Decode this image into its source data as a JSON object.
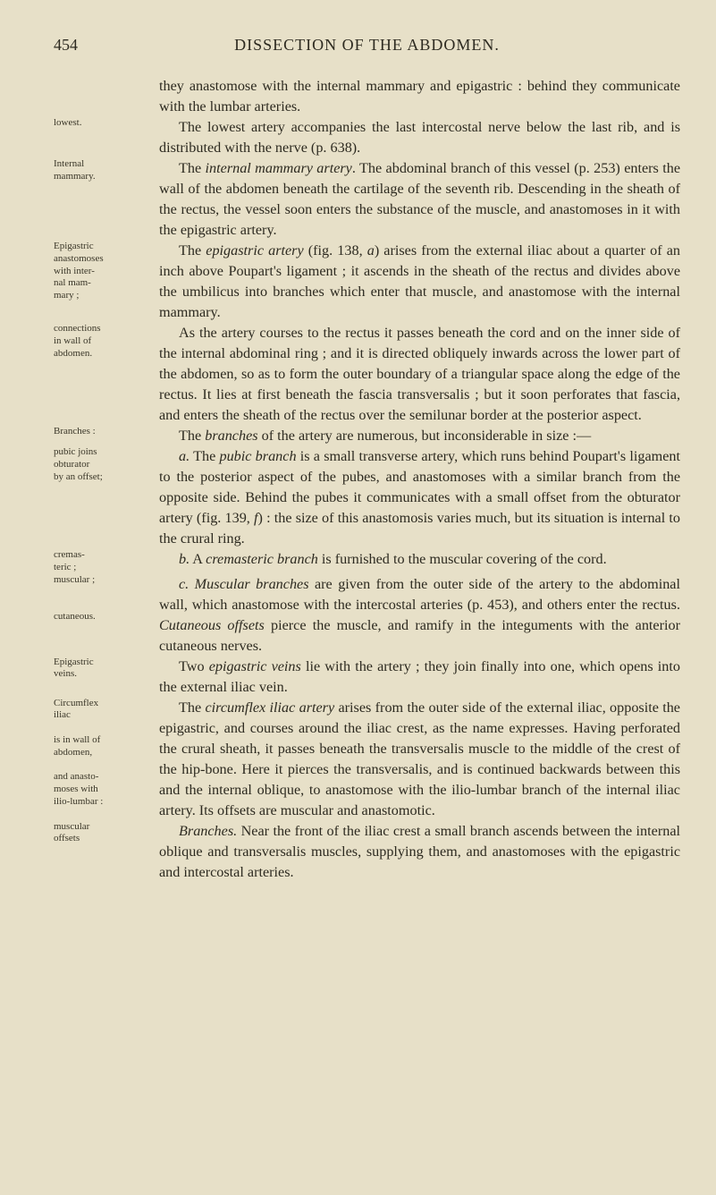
{
  "colors": {
    "background": "#e7e0c8",
    "text": "#2d2a20",
    "marginText": "#3a3628"
  },
  "typography": {
    "bodyFontFamily": "Georgia, 'Times New Roman', serif",
    "bodyFontSizePt": 12,
    "marginFontSizePt": 8,
    "headerFontSizePt": 13,
    "lineHeight": 1.42
  },
  "layout": {
    "pageWidthPx": 801,
    "pageHeightPx": 1336,
    "marginColWidthPx": 110
  },
  "header": {
    "pageNumber": "454",
    "title": "DISSECTION OF THE ABDOMEN."
  },
  "paragraphs": [
    {
      "margin": [],
      "textHtml": "they anastomose with the internal mammary and epigastric : behind they communicate with the lumbar arteries."
    },
    {
      "margin": [
        "lowest."
      ],
      "textHtml": "<span class=\"indent\"></span>The lowest artery accompanies the last intercostal nerve below the last rib, and is distributed with the nerve (p. 638)."
    },
    {
      "margin": [
        "Internal",
        "mammary."
      ],
      "textHtml": "<span class=\"indent\"></span>The <span class=\"it\">internal mammary artery</span>. The abdominal branch of this vessel (p. 253) enters the wall of the abdomen beneath the cartilage of the seventh rib. Descending in the sheath of the rectus, the vessel soon enters the substance of the muscle, and anastomoses in it with the epigastric artery."
    },
    {
      "margin": [
        "Epigastric",
        "anastomoses",
        "with inter-",
        "nal mam-",
        "mary ;"
      ],
      "textHtml": "<span class=\"indent\"></span>The <span class=\"it\">epigastric artery</span> (fig. 138, <span class=\"it\">a</span>) arises from the external iliac about a quarter of an inch above Poupart's ligament ; it ascends in the sheath of the rectus and divides above the umbilicus into branches which enter that muscle, and anastomose with the internal mammary."
    },
    {
      "margin": [
        "connections",
        "in wall of",
        "abdomen."
      ],
      "textHtml": "<span class=\"indent\"></span>As the artery courses to the rectus it passes beneath the cord and on the inner side of the internal abdominal ring ; and it is directed obliquely inwards across the lower part of the abdomen, so as to form the outer boundary of a triangular space along the edge of the rectus. It lies at first beneath the fascia transversalis ; but it soon perforates that fascia, and enters the sheath of the rectus over the semilunar border at the posterior aspect."
    },
    {
      "margin": [
        "Branches :"
      ],
      "textHtml": "<span class=\"indent\"></span>The <span class=\"it\">branches</span> of the artery are numerous, but inconsiderable in size :—"
    },
    {
      "margin": [
        "pubic joins",
        "obturator",
        "by an offset;"
      ],
      "textHtml": "<span class=\"indent\"></span><span class=\"it\">a.</span> The <span class=\"it\">pubic branch</span> is a small transverse artery, which runs behind Poupart's ligament to the posterior aspect of the pubes, and anastomoses with a similar branch from the opposite side. Behind the pubes it communicates with a small offset from the obturator artery (fig. 139, <span class=\"it\">f</span>) : the size of this anastomosis varies much, but its situation is internal to the crural ring."
    },
    {
      "margin": [
        "cremas-",
        "teric ;"
      ],
      "textHtml": "<span class=\"indent\"></span><span class=\"it\">b.</span> A <span class=\"it\">cremasteric branch</span> is furnished to the muscular covering of the cord."
    },
    {
      "margin": [
        "muscular ;",
        "",
        "",
        "cutaneous."
      ],
      "textHtml": "<span class=\"indent\"></span><span class=\"it\">c. Muscular branches</span> are given from the outer side of the artery to the abdominal wall, which anastomose with the intercostal arteries (p. 453), and others enter the rectus. <span class=\"it\">Cutaneous offsets</span> pierce the muscle, and ramify in the integuments with the anterior cutaneous nerves."
    },
    {
      "margin": [
        "Epigastric",
        "veins."
      ],
      "textHtml": "<span class=\"indent\"></span>Two <span class=\"it\">epigastric veins</span> lie with the artery ; they join finally into one, which opens into the external iliac vein."
    },
    {
      "margin": [
        "Circumflex",
        "iliac",
        "",
        "is in wall of",
        "abdomen,",
        "",
        "and anasto-",
        "moses with",
        "ilio-lumbar :"
      ],
      "textHtml": "<span class=\"indent\"></span>The <span class=\"it\">circumflex iliac artery</span> arises from the outer side of the external iliac, opposite the epigastric, and courses around the iliac crest, as the name expresses. Having perforated the crural sheath, it passes beneath the transversalis muscle to the middle of the crest of the hip-bone. Here it pierces the transversalis, and is continued backwards between this and the internal oblique, to anastomose with the ilio-lumbar branch of the internal iliac artery. Its offsets are muscular and anastomotic."
    },
    {
      "margin": [
        "muscular",
        "offsets"
      ],
      "textHtml": "<span class=\"indent\"></span><span class=\"it\">Branches.</span> Near the front of the iliac crest a small branch ascends between the internal oblique and transversalis muscles, supplying them, and anastomoses with the epigastric and intercostal arteries."
    }
  ]
}
